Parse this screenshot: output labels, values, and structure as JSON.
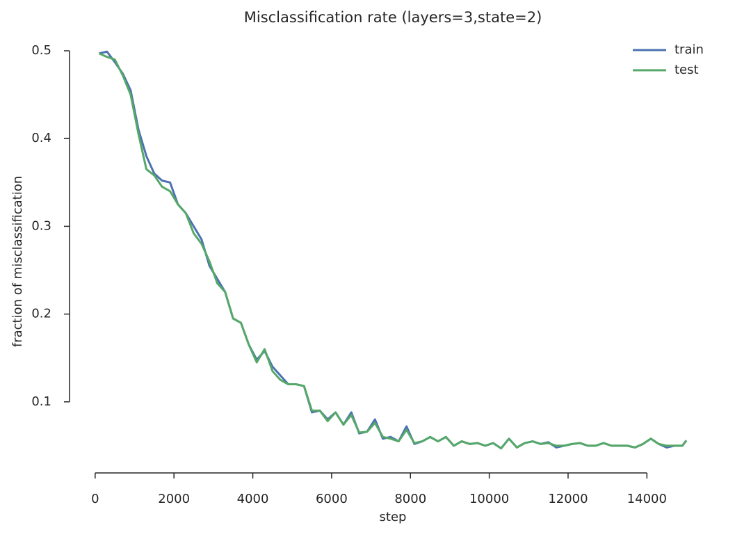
{
  "chart_data": {
    "type": "line",
    "title": "Misclassification rate (layers=3,state=2)",
    "x_label": "step",
    "y_label": "fraction of misclassification",
    "x": [
      100,
      300,
      500,
      700,
      900,
      1100,
      1300,
      1500,
      1700,
      1900,
      2100,
      2300,
      2500,
      2700,
      2900,
      3100,
      3300,
      3500,
      3700,
      3900,
      4100,
      4300,
      4500,
      4700,
      4900,
      5100,
      5300,
      5500,
      5700,
      5900,
      6100,
      6300,
      6500,
      6700,
      6900,
      7100,
      7300,
      7500,
      7700,
      7900,
      8100,
      8300,
      8500,
      8700,
      8900,
      9100,
      9300,
      9500,
      9700,
      9900,
      10100,
      10300,
      10500,
      10700,
      10900,
      11100,
      11300,
      11500,
      11700,
      11900,
      12100,
      12300,
      12500,
      12700,
      12900,
      13100,
      13300,
      13500,
      13700,
      13900,
      14100,
      14300,
      14500,
      14700,
      14900,
      15000
    ],
    "series": [
      {
        "name": "train",
        "color": "#4c72b0",
        "values": [
          0.497,
          0.499,
          0.487,
          0.474,
          0.455,
          0.41,
          0.38,
          0.36,
          0.352,
          0.35,
          0.325,
          0.315,
          0.3,
          0.285,
          0.255,
          0.24,
          0.225,
          0.195,
          0.19,
          0.165,
          0.148,
          0.158,
          0.14,
          0.13,
          0.12,
          0.12,
          0.118,
          0.088,
          0.09,
          0.08,
          0.088,
          0.074,
          0.088,
          0.064,
          0.066,
          0.08,
          0.058,
          0.06,
          0.055,
          0.072,
          0.052,
          0.055,
          0.06,
          0.055,
          0.06,
          0.05,
          0.055,
          0.052,
          0.053,
          0.05,
          0.053,
          0.047,
          0.058,
          0.048,
          0.053,
          0.055,
          0.052,
          0.054,
          0.048,
          0.05,
          0.052,
          0.053,
          0.05,
          0.05,
          0.053,
          0.05,
          0.05,
          0.05,
          0.048,
          0.052,
          0.058,
          0.052,
          0.048,
          0.05,
          0.05,
          0.056
        ]
      },
      {
        "name": "test",
        "color": "#55a868",
        "values": [
          0.497,
          0.493,
          0.49,
          0.472,
          0.45,
          0.405,
          0.365,
          0.358,
          0.345,
          0.34,
          0.325,
          0.315,
          0.292,
          0.28,
          0.26,
          0.235,
          0.225,
          0.195,
          0.19,
          0.165,
          0.145,
          0.16,
          0.135,
          0.125,
          0.12,
          0.12,
          0.118,
          0.09,
          0.09,
          0.078,
          0.088,
          0.074,
          0.085,
          0.065,
          0.066,
          0.076,
          0.06,
          0.058,
          0.055,
          0.068,
          0.053,
          0.055,
          0.06,
          0.055,
          0.06,
          0.05,
          0.055,
          0.052,
          0.053,
          0.05,
          0.053,
          0.047,
          0.058,
          0.048,
          0.053,
          0.055,
          0.052,
          0.053,
          0.05,
          0.05,
          0.052,
          0.053,
          0.05,
          0.05,
          0.053,
          0.05,
          0.05,
          0.05,
          0.048,
          0.052,
          0.058,
          0.052,
          0.05,
          0.05,
          0.05,
          0.056
        ]
      }
    ],
    "xlim": [
      -650,
      15600
    ],
    "ylim": [
      0.019,
      0.5
    ],
    "xticks": [
      0,
      2000,
      4000,
      6000,
      8000,
      10000,
      12000,
      14000
    ],
    "yticks": [
      0.1,
      0.2,
      0.3,
      0.4,
      0.5
    ],
    "legend": "upper right",
    "grid": false
  }
}
